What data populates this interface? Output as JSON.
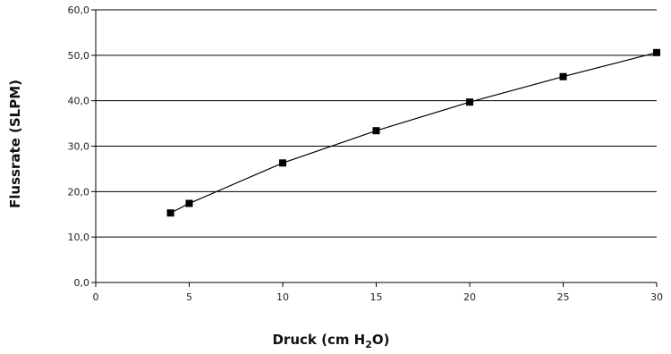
{
  "chart_data": {
    "type": "line",
    "title": "",
    "xlabel": "Druck (cm H2O)",
    "xlabel_parts": {
      "pre": "Druck (cm H",
      "sub": "2",
      "post": "O)"
    },
    "ylabel": "Flussrate (SLPM)",
    "xlim": [
      0,
      30
    ],
    "ylim": [
      0,
      60
    ],
    "xticks": [
      "0",
      "5",
      "10",
      "15",
      "20",
      "25",
      "30"
    ],
    "yticks": [
      "0,0",
      "10,0",
      "20,0",
      "30,0",
      "40,0",
      "50,0",
      "60,0"
    ],
    "grid": "horizontal",
    "legend": "none",
    "series": [
      {
        "x": [
          4,
          5,
          10,
          15,
          20,
          25,
          30
        ],
        "y": [
          15.3,
          17.4,
          26.3,
          33.4,
          39.7,
          45.3,
          50.6
        ],
        "color": "#000000",
        "marker": "square"
      }
    ]
  }
}
